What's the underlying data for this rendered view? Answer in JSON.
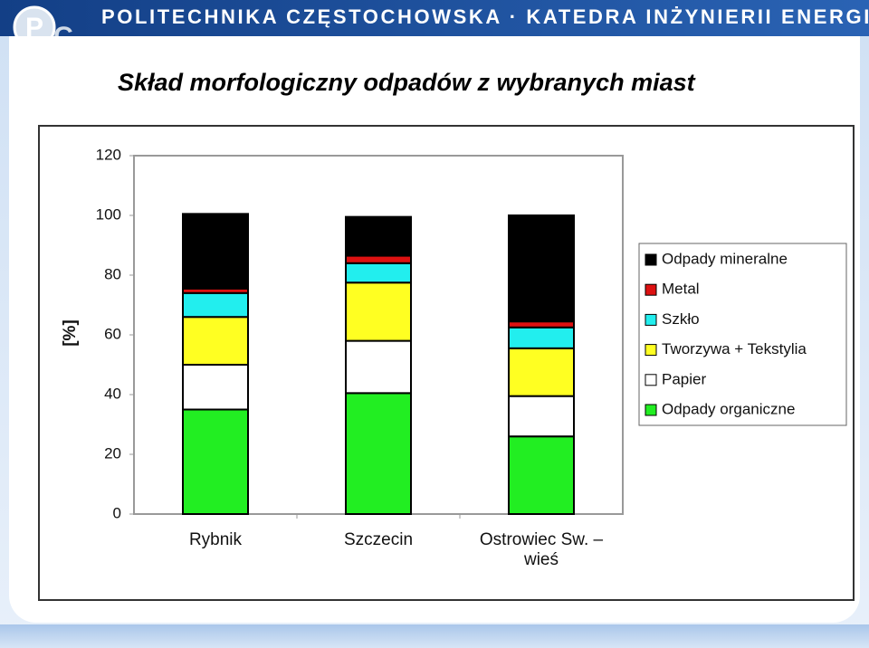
{
  "header": {
    "text": "POLITECHNIKA CZĘSTOCHOWSKA · KATEDRA INŻYNIERII ENERGII"
  },
  "chart_data": {
    "type": "stacked_bar",
    "title": "Skład morfologiczny odpadów  z wybranych miast",
    "y_label": "[%]",
    "categories": [
      "Rybnik",
      "Szczecin",
      "Ostrowiec Sw. –wieś"
    ],
    "series": [
      {
        "name": "Odpady organiczne",
        "color": "#22ee22",
        "values": [
          35,
          40.5,
          26
        ]
      },
      {
        "name": "Papier",
        "color": "#ffffff",
        "values": [
          15,
          17.5,
          13.5
        ]
      },
      {
        "name": "Tworzywa + Tekstylia",
        "color": "#ffff22",
        "values": [
          16,
          19.5,
          16
        ]
      },
      {
        "name": "Szkło",
        "color": "#22eeee",
        "values": [
          8,
          6.5,
          7
        ]
      },
      {
        "name": "Metal",
        "color": "#dd1111",
        "values": [
          1.5,
          2.5,
          2
        ]
      },
      {
        "name": "Odpady mineralne",
        "color": "#000000",
        "values": [
          25,
          13,
          35.5
        ]
      }
    ],
    "ylim": [
      0,
      120
    ],
    "yticks": [
      0,
      20,
      40,
      60,
      80,
      100,
      120
    ],
    "grid": false
  }
}
